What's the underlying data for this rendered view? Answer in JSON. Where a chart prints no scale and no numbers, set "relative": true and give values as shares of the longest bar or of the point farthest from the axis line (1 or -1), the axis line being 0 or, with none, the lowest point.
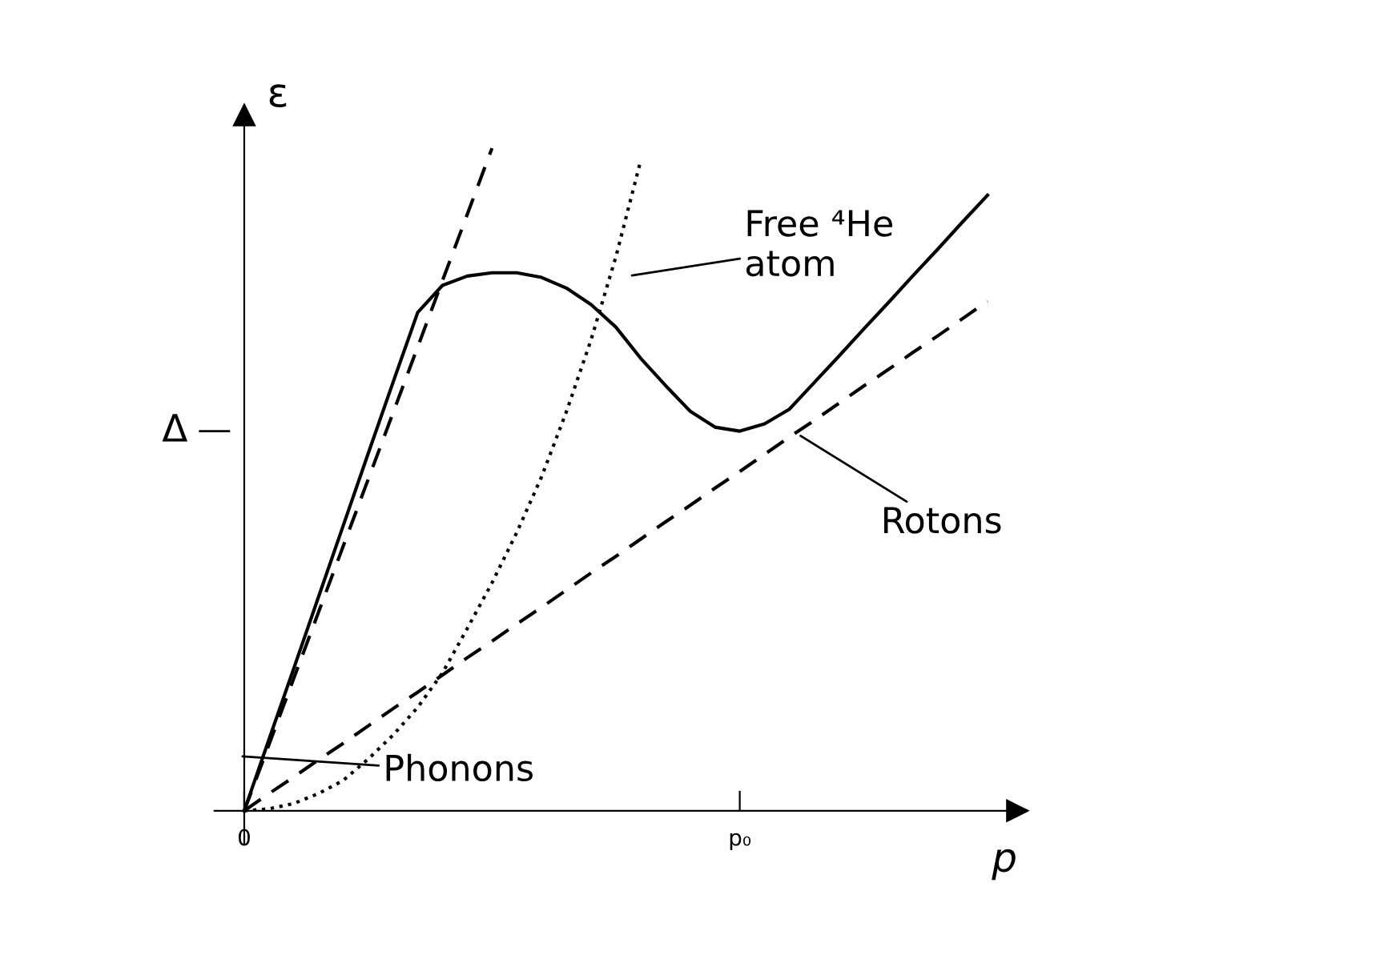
{
  "chart_data": {
    "type": "line",
    "relative": true,
    "xlabel": "p",
    "ylabel": "ε",
    "marker": "none",
    "categories": [
      "0",
      null,
      null,
      null,
      null,
      null,
      null,
      null,
      null,
      null,
      null,
      null,
      null,
      null,
      null,
      null,
      null,
      null,
      null,
      null,
      "p₀",
      null,
      null,
      null,
      null,
      null,
      null,
      null,
      null,
      null,
      null
    ],
    "series": [
      {
        "color": "#000000",
        "line_style": "solid",
        "values": [
          0,
          0.108,
          0.215,
          0.323,
          0.431,
          0.539,
          0.646,
          0.752,
          0.793,
          0.807,
          0.812,
          0.812,
          0.805,
          0.789,
          0.764,
          0.73,
          0.683,
          0.642,
          0.603,
          0.579,
          0.573,
          0.584,
          0.606,
          0.646,
          0.686,
          0.727,
          0.767,
          0.808,
          0.848,
          0.889,
          0.929
        ]
      },
      {
        "color": "#000000",
        "line_style": "dashed",
        "values": [
          0,
          0.1,
          0.2,
          0.3,
          0.4,
          0.5,
          0.6,
          0.7,
          0.8,
          0.9,
          1,
          null,
          null,
          null,
          null,
          null,
          null,
          null,
          null,
          null,
          null,
          null,
          null,
          null,
          null,
          null,
          null,
          null,
          null,
          null,
          null
        ]
      },
      {
        "color": "#000000",
        "line_style": "dashed",
        "values": [
          0,
          0.026,
          0.051,
          0.077,
          0.102,
          0.128,
          0.154,
          0.179,
          0.205,
          0.231,
          0.256,
          0.282,
          0.307,
          0.333,
          0.359,
          0.384,
          0.41,
          0.436,
          0.461,
          0.487,
          0.512,
          0.538,
          0.564,
          0.589,
          0.615,
          0.641,
          0.666,
          0.692,
          0.717,
          0.743,
          0.769
        ]
      },
      {
        "color": "#000000",
        "line_style": "dotted",
        "values": [
          0,
          0.003,
          0.011,
          0.026,
          0.046,
          0.078,
          0.114,
          0.156,
          0.208,
          0.275,
          0.344,
          0.42,
          0.504,
          0.602,
          0.711,
          0.836,
          0.981,
          null,
          null,
          null,
          null,
          null,
          null,
          null,
          null,
          null,
          null,
          null,
          null,
          null,
          null
        ]
      }
    ],
    "annotations": [
      "Free ⁴He\natom",
      "Phonons",
      "Rotons",
      "Δ"
    ]
  }
}
